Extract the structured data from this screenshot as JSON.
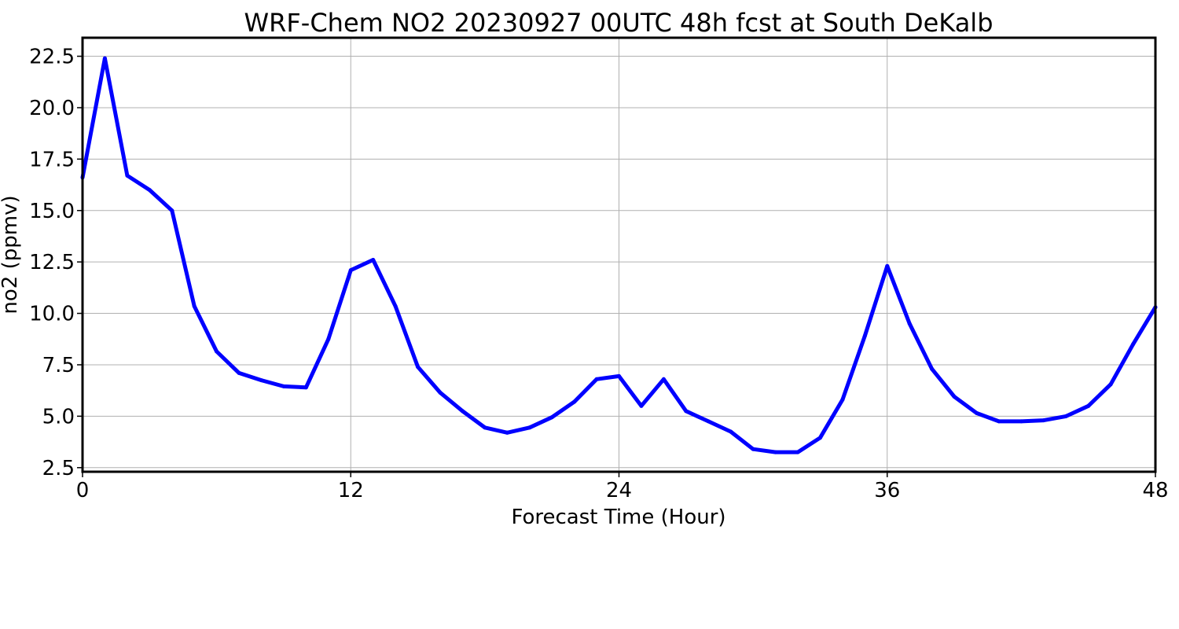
{
  "chart_data": {
    "type": "line",
    "title": "WRF-Chem NO2  20230927 00UTC 48h fcst at South DeKalb",
    "xlabel": "Forecast Time (Hour)",
    "ylabel": "no2  (ppmv)",
    "xlim": [
      0,
      48
    ],
    "ylim": [
      2.3,
      23.4
    ],
    "xticks": [
      0,
      12,
      24,
      36,
      48
    ],
    "xtick_labels": [
      "0",
      "12",
      "24",
      "36",
      "48"
    ],
    "yticks": [
      2.5,
      5.0,
      7.5,
      10.0,
      12.5,
      15.0,
      17.5,
      20.0,
      22.5
    ],
    "ytick_labels": [
      "2.5",
      "5.0",
      "7.5",
      "10.0",
      "12.5",
      "15.0",
      "17.5",
      "20.0",
      "22.5"
    ],
    "grid": true,
    "legend": false,
    "series": [
      {
        "color": "#0000ff",
        "x": [
          0,
          1,
          2,
          3,
          4,
          5,
          6,
          7,
          8,
          9,
          10,
          11,
          12,
          13,
          14,
          15,
          16,
          17,
          18,
          19,
          20,
          21,
          22,
          23,
          24,
          25,
          26,
          27,
          28,
          29,
          30,
          31,
          32,
          33,
          34,
          35,
          36,
          37,
          38,
          39,
          40,
          41,
          42,
          43,
          44,
          45,
          46,
          47,
          48
        ],
        "values": [
          16.6,
          22.4,
          16.7,
          16.0,
          15.0,
          10.35,
          8.15,
          7.1,
          6.75,
          6.45,
          6.4,
          8.75,
          12.1,
          12.6,
          10.35,
          7.4,
          6.15,
          5.25,
          4.45,
          4.2,
          4.45,
          4.95,
          5.7,
          6.8,
          6.95,
          5.5,
          6.8,
          5.25,
          4.75,
          4.25,
          3.4,
          3.25,
          3.25,
          3.95,
          5.8,
          8.9,
          12.3,
          9.5,
          7.3,
          5.95,
          5.15,
          4.75,
          4.75,
          4.8,
          5.0,
          5.5,
          6.55,
          8.5,
          10.3
        ]
      }
    ]
  }
}
